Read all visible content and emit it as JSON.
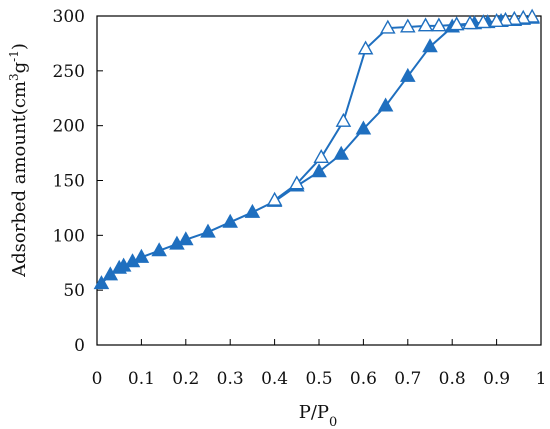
{
  "chart_data": {
    "type": "line",
    "xlabel": "P/P0",
    "ylabel": "Adsorbed amount(cm3g-1)",
    "xlim": [
      0,
      1
    ],
    "ylim": [
      0,
      300
    ],
    "xticks": [
      "0",
      "0.1",
      "0.2",
      "0.3",
      "0.4",
      "0.5",
      "0.6",
      "0.7",
      "0.8",
      "0.9",
      "1"
    ],
    "yticks": [
      "0",
      "50",
      "100",
      "150",
      "200",
      "250",
      "300"
    ],
    "grid": false,
    "legend": "none",
    "series": [
      {
        "marker": "filled-triangle",
        "color": "#1f6fbf",
        "x": [
          0.01,
          0.03,
          0.05,
          0.06,
          0.08,
          0.1,
          0.14,
          0.18,
          0.2,
          0.25,
          0.3,
          0.35,
          0.4,
          0.45,
          0.5,
          0.55,
          0.6,
          0.65,
          0.7,
          0.75,
          0.8,
          0.85,
          0.88,
          0.91,
          0.94,
          0.96,
          0.98
        ],
        "y": [
          56,
          64,
          70,
          72,
          76,
          80,
          86,
          92,
          96,
          103,
          112,
          121,
          131,
          145,
          158,
          174,
          197,
          218,
          245,
          272,
          290,
          293,
          294,
          295,
          296,
          297,
          298
        ]
      },
      {
        "marker": "open-triangle",
        "color": "#1f6fbf",
        "x": [
          0.98,
          0.96,
          0.94,
          0.92,
          0.9,
          0.87,
          0.84,
          0.81,
          0.77,
          0.74,
          0.7,
          0.655,
          0.605,
          0.555,
          0.505,
          0.45,
          0.4
        ],
        "y": [
          299,
          298,
          297,
          296,
          295,
          294,
          293,
          292,
          291,
          291,
          290,
          289,
          270,
          204,
          171,
          147,
          132
        ]
      }
    ]
  }
}
